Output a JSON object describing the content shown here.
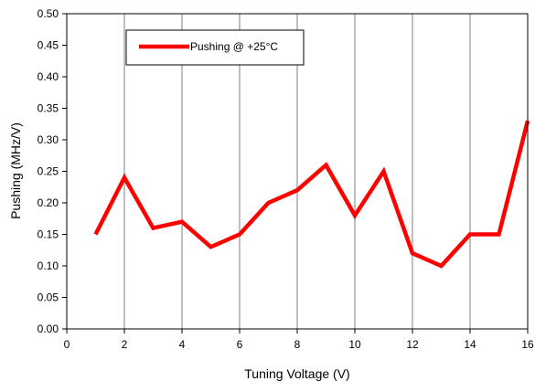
{
  "chart_data": {
    "type": "line",
    "xlabel": "Tuning Voltage (V)",
    "ylabel": "Pushing (MHz/V)",
    "xlim": [
      0,
      16
    ],
    "ylim": [
      0,
      0.5
    ],
    "xticks": [
      "0",
      "2",
      "4",
      "6",
      "8",
      "10",
      "12",
      "14",
      "16"
    ],
    "yticks": [
      "0.00",
      "0.05",
      "0.10",
      "0.15",
      "0.20",
      "0.25",
      "0.30",
      "0.35",
      "0.40",
      "0.45",
      "0.50"
    ],
    "grid": "vertical",
    "legend_position": "top-left",
    "series": [
      {
        "name": "Pushing @ +25°C",
        "color": "#ff0000",
        "x": [
          1,
          2,
          3,
          4,
          5,
          6,
          7,
          8,
          9,
          10,
          11,
          12,
          13,
          14,
          15,
          16
        ],
        "y": [
          0.15,
          0.24,
          0.16,
          0.17,
          0.13,
          0.15,
          0.2,
          0.22,
          0.26,
          0.18,
          0.25,
          0.12,
          0.1,
          0.15,
          0.15,
          0.33
        ]
      }
    ]
  }
}
